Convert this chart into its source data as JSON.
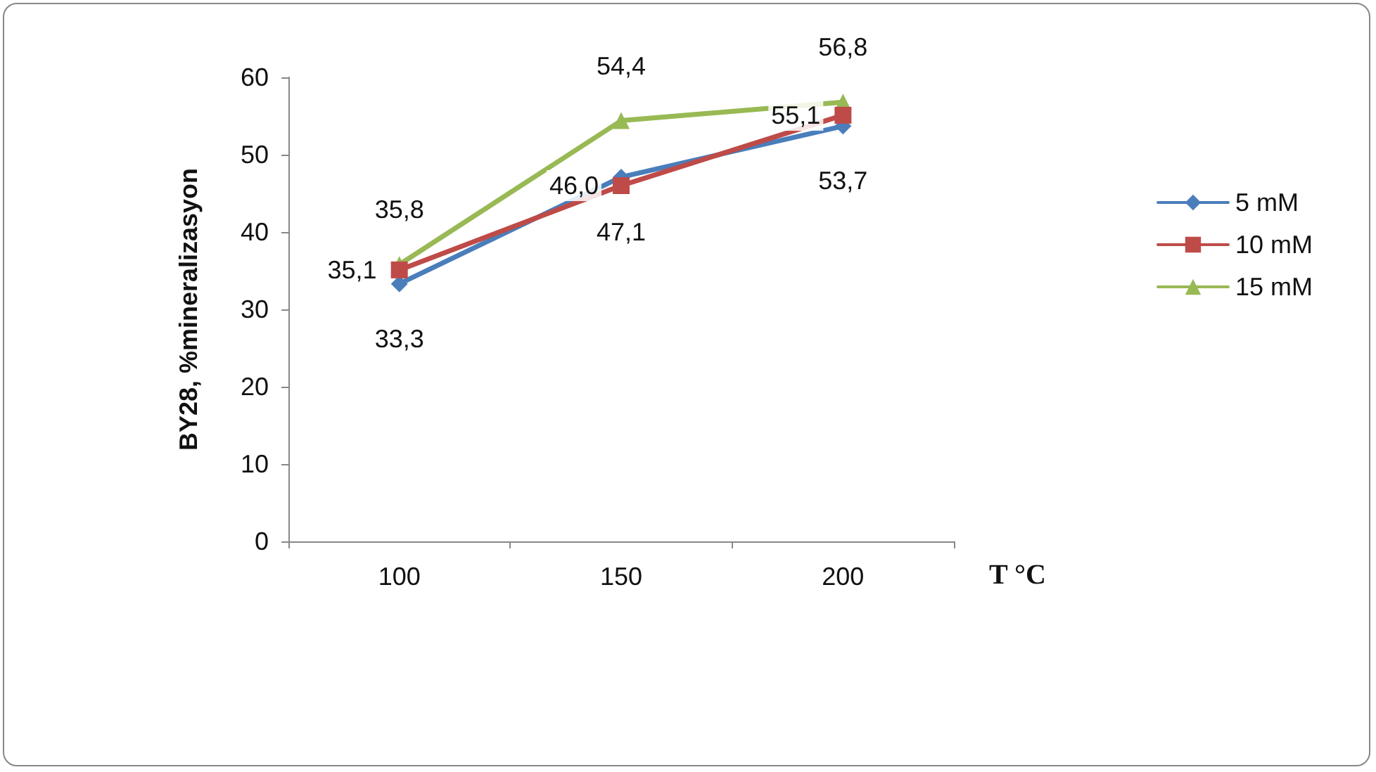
{
  "chart_data": {
    "type": "line",
    "xlabel": "T °C",
    "ylabel": "BY28, %mineralizasyon",
    "categories": [
      "100",
      "150",
      "200"
    ],
    "ylim": [
      0,
      60
    ],
    "yticks": [
      0,
      10,
      20,
      30,
      40,
      50,
      60
    ],
    "grid": false,
    "legend": "right",
    "series": [
      {
        "name": "5 mM",
        "color": "#4a7ebb",
        "marker": "diamond",
        "values": [
          33.3,
          47.1,
          53.7
        ],
        "value_labels": [
          "33,3",
          "47,1",
          "53,7"
        ]
      },
      {
        "name": "10 mM",
        "color": "#be4b48",
        "marker": "square",
        "values": [
          35.1,
          46.0,
          55.1
        ],
        "value_labels": [
          "35,1",
          "46,0",
          "55,1"
        ]
      },
      {
        "name": "15 mM",
        "color": "#98b954",
        "marker": "triangle",
        "values": [
          35.8,
          54.4,
          56.8
        ],
        "value_labels": [
          "35,8",
          "54,4",
          "56,8"
        ]
      }
    ]
  }
}
